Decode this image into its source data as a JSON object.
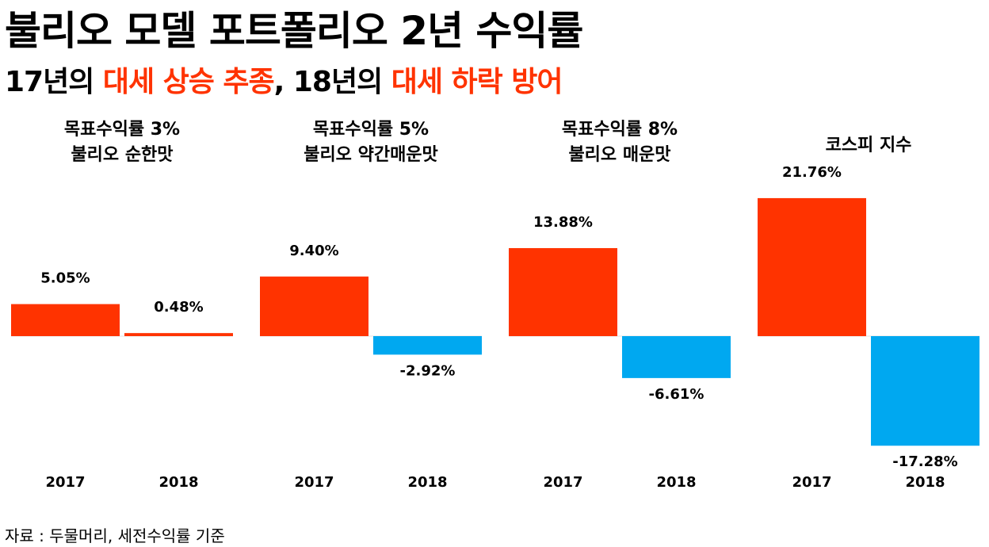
{
  "title": "불리오 모델 포트폴리오 2년 수익률",
  "subtitle": {
    "part1": "17년의 ",
    "part2": "대세 상승 추종",
    "part3": ", 18년의 ",
    "part4": "대세 하락 방어"
  },
  "source": "자료 : 두물머리, 세전수익률 기준",
  "colors": {
    "positive": "#ff3300",
    "negative": "#00a8f0",
    "highlight": "#ff3300"
  },
  "chart_data": [
    {
      "type": "bar",
      "title": [
        "목표수익률 3%",
        "불리오 순한맛"
      ],
      "categories": [
        "2017",
        "2018"
      ],
      "values": [
        5.05,
        0.48
      ],
      "labels": [
        "5.05%",
        "0.48%"
      ]
    },
    {
      "type": "bar",
      "title": [
        "목표수익률 5%",
        "불리오 약간매운맛"
      ],
      "categories": [
        "2017",
        "2018"
      ],
      "values": [
        9.4,
        -2.92
      ],
      "labels": [
        "9.40%",
        "-2.92%"
      ]
    },
    {
      "type": "bar",
      "title": [
        "목표수익률 8%",
        "불리오 매운맛"
      ],
      "categories": [
        "2017",
        "2018"
      ],
      "values": [
        13.88,
        -6.61
      ],
      "labels": [
        "13.88%",
        "-6.61%"
      ]
    },
    {
      "type": "bar",
      "title": [
        "코스피 지수"
      ],
      "categories": [
        "2017",
        "2018"
      ],
      "values": [
        21.76,
        -17.28
      ],
      "labels": [
        "21.76%",
        "-17.28%"
      ]
    }
  ]
}
